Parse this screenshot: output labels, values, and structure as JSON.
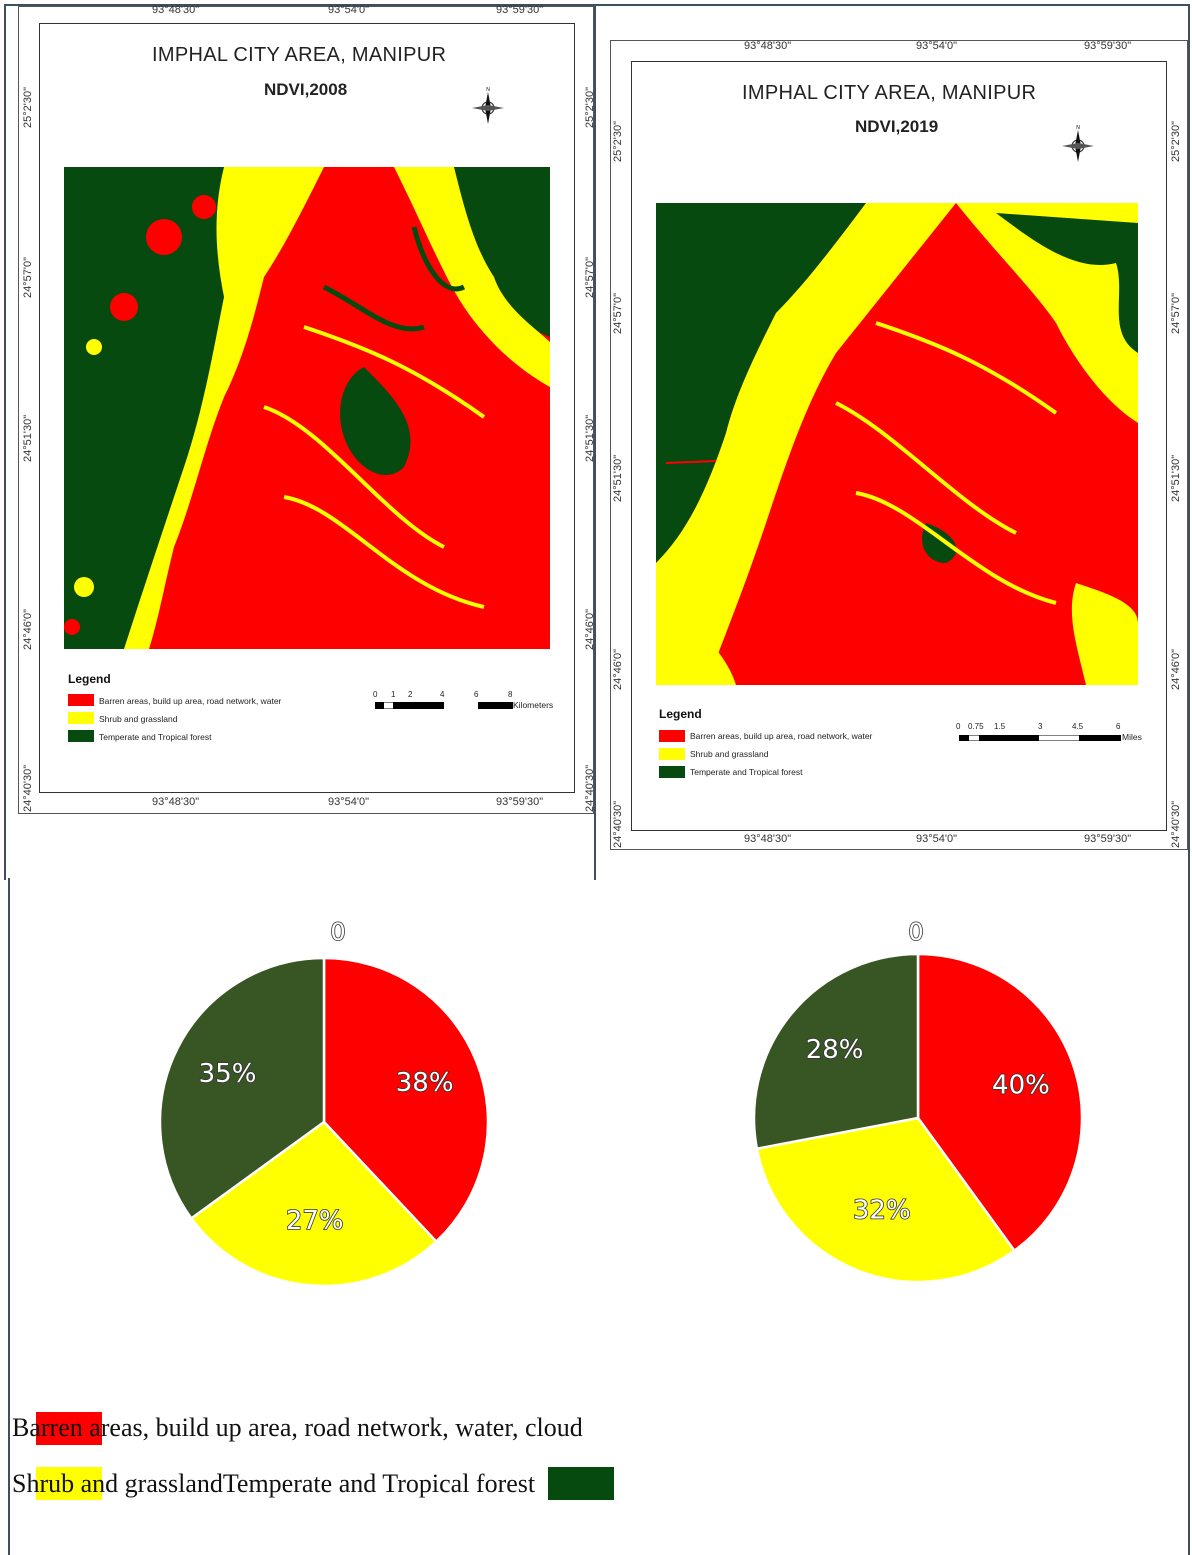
{
  "maps": [
    {
      "title": "IMPHAL CITY AREA, MANIPUR",
      "subtitle": "NDVI,2008",
      "lon_labels": [
        "93°48'30\"",
        "93°54'0\"",
        "93°59'30\""
      ],
      "lat_labels": [
        "25°2'30\"",
        "24°57'0\"",
        "24°51'30\"",
        "24°46'0\"",
        "24°40'30\""
      ],
      "legend": {
        "title": "Legend",
        "items": [
          {
            "label": "Barren areas, build up area, road network, water",
            "color": "#ff0000"
          },
          {
            "label": "Shrub and grassland",
            "color": "#ffff00"
          },
          {
            "label": "Temperate and Tropical forest",
            "color": "#064a10"
          }
        ]
      },
      "scale": {
        "ticks": [
          "0",
          "1",
          "2",
          "4",
          "6",
          "8"
        ],
        "unit": "Kilometers"
      }
    },
    {
      "title": "IMPHAL CITY AREA, MANIPUR",
      "subtitle": "NDVI,2019",
      "lon_labels": [
        "93°48'30\"",
        "93°54'0\"",
        "93°59'30\""
      ],
      "lat_labels": [
        "25°2'30\"",
        "24°57'0\"",
        "24°51'30\"",
        "24°46'0\"",
        "24°40'30\""
      ],
      "legend": {
        "title": "Legend",
        "items": [
          {
            "label": "Barren areas, build up area, road network, water",
            "color": "#ff0000"
          },
          {
            "label": "Shrub and grassland",
            "color": "#ffff00"
          },
          {
            "label": "Temperate and Tropical forest",
            "color": "#064a10"
          }
        ]
      },
      "scale": {
        "ticks": [
          "0",
          "0.75",
          "1.5",
          "3",
          "4.5",
          "6"
        ],
        "unit": "Miles"
      }
    }
  ],
  "chart_data": [
    {
      "type": "pie",
      "top_label": "0",
      "slices": [
        {
          "label": "38%",
          "value": 38,
          "color": "#ff0000"
        },
        {
          "label": "27%",
          "value": 27,
          "color": "#ffff00"
        },
        {
          "label": "35%",
          "value": 35,
          "color": "#375623"
        }
      ]
    },
    {
      "type": "pie",
      "top_label": "0",
      "slices": [
        {
          "label": "40%",
          "value": 40,
          "color": "#ff0000"
        },
        {
          "label": "32%",
          "value": 32,
          "color": "#ffff00"
        },
        {
          "label": "28%",
          "value": 28,
          "color": "#375623"
        }
      ]
    }
  ],
  "bottom_legend": {
    "line1": "Barren areas, build up area, road network, water, cloud",
    "line2": "Shrub and grasslandTemperate and Tropical forest",
    "colors": {
      "barren": "#ff0000",
      "shrub": "#ffff00",
      "forest": "#064a10"
    }
  }
}
